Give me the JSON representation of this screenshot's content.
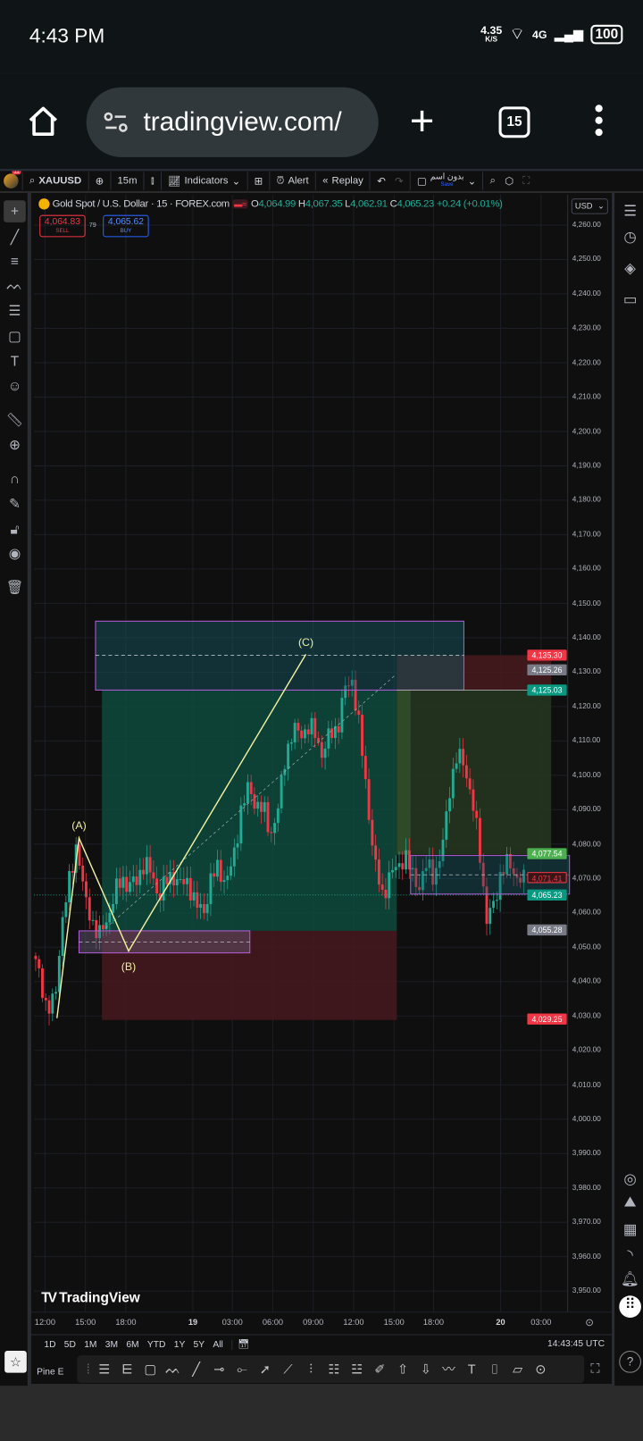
{
  "status_bar": {
    "time": "4:43 PM",
    "net_speed": "4.35",
    "net_unit": "K/S",
    "network": "4G",
    "battery": "100"
  },
  "browser": {
    "url": "tradingview.com/",
    "tab_count": "15",
    "icons": [
      "home-icon",
      "site-settings-icon",
      "new-tab-icon",
      "tabs-icon",
      "menu-icon"
    ]
  },
  "toolbar": {
    "badge": "11",
    "symbol": "XAUUSD",
    "interval": "15m",
    "indicators": "Indicators",
    "alert": "Alert",
    "replay": "Replay",
    "layout_name": "بدون اسم",
    "save": "Save"
  },
  "legend": {
    "title": "Gold Spot / U.S. Dollar · 15 · FOREX.com",
    "o_label": "O",
    "o": "4,064.99",
    "h_label": "H",
    "h": "4,067.35",
    "l_label": "L",
    "l": "4,062.91",
    "c_label": "C",
    "c": "4,065.23",
    "change": "+0.24 (+0.01%)",
    "sell_price": "4,064.83",
    "sell_label": "SELL",
    "spread": "79",
    "buy_price": "4,065.62",
    "buy_label": "BUY",
    "currency": "USD"
  },
  "colors": {
    "up": "#22ab94",
    "down": "#f23645",
    "drawing": "#f0f0a0",
    "box_border": "#b35cd8"
  },
  "chart_data": {
    "type": "candlestick",
    "symbol": "XAUUSD",
    "interval": "15m",
    "ylim": [
      3945,
      4265
    ],
    "y_ticks": [
      "4,260.00",
      "4,250.00",
      "4,240.00",
      "4,230.00",
      "4,220.00",
      "4,210.00",
      "4,200.00",
      "4,190.00",
      "4,180.00",
      "4,170.00",
      "4,160.00",
      "4,150.00",
      "4,140.00",
      "4,130.00",
      "4,120.00",
      "4,110.00",
      "4,100.00",
      "4,090.00",
      "4,080.00",
      "4,070.00",
      "4,060.00",
      "4,050.00",
      "4,040.00",
      "4,030.00",
      "4,020.00",
      "4,010.00",
      "4,000.00",
      "3,990.00",
      "3,980.00",
      "3,970.00",
      "3,960.00",
      "3,950.00"
    ],
    "x_ticks": [
      "12:00",
      "15:00",
      "18:00",
      "19",
      "03:00",
      "06:00",
      "09:00",
      "12:00",
      "15:00",
      "18:00",
      "20",
      "03:00"
    ],
    "price_path": [
      4047.5,
      4042,
      4031.5,
      4034,
      4058,
      4069,
      4081,
      4064,
      4058,
      4053,
      4058,
      4065,
      4070,
      4068,
      4069,
      4075,
      4071,
      4065,
      4069,
      4071,
      4068,
      4069,
      4062,
      4060,
      4070,
      4073,
      4069,
      4075,
      4090,
      4096,
      4092,
      4090,
      4083,
      4090,
      4106,
      4113,
      4112,
      4114,
      4112,
      4106,
      4112,
      4114,
      4125,
      4128,
      4112,
      4093,
      4074,
      4065,
      4071,
      4073,
      4077,
      4071,
      4068,
      4074,
      4071,
      4077,
      4096,
      4105,
      4104,
      4093,
      4080,
      4058,
      4062,
      4073,
      4074,
      4071,
      4069
    ],
    "price_labels": [
      {
        "value": "4,135.30",
        "color": "#f23645"
      },
      {
        "value": "4,125.26",
        "color": "#787b86"
      },
      {
        "value": "4,125.03",
        "color": "#089981"
      },
      {
        "value": "4,077.54",
        "color": "#4caf50"
      },
      {
        "value": "4,071.41",
        "color": "#3a1518"
      },
      {
        "value": "4,065.23",
        "color": "#089981"
      },
      {
        "value": "4,055.28",
        "color": "#787b86"
      },
      {
        "value": "4,029.25",
        "color": "#f23645"
      }
    ],
    "annotations": [
      "(A)",
      "(B)",
      "(C)"
    ]
  },
  "range_buttons": [
    "1D",
    "5D",
    "1M",
    "3M",
    "6M",
    "YTD",
    "1Y",
    "5Y",
    "All"
  ],
  "clock": "14:43:45 UTC",
  "watermark": "TradingView",
  "bottom": {
    "pine": "Pine E"
  }
}
